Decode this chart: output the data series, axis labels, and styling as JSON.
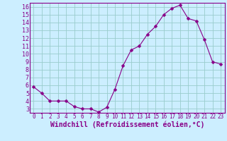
{
  "x": [
    0,
    1,
    2,
    3,
    4,
    5,
    6,
    7,
    8,
    9,
    10,
    11,
    12,
    13,
    14,
    15,
    16,
    17,
    18,
    19,
    20,
    21,
    22,
    23
  ],
  "y": [
    5.8,
    5.0,
    4.0,
    4.0,
    4.0,
    3.3,
    3.0,
    3.0,
    2.6,
    3.2,
    5.5,
    8.5,
    10.5,
    11.0,
    12.5,
    13.5,
    15.0,
    15.8,
    16.2,
    14.5,
    14.2,
    11.8,
    9.0,
    8.7
  ],
  "line_color": "#880088",
  "marker": "D",
  "marker_size": 2.5,
  "bg_color": "#cceeff",
  "grid_color": "#99cccc",
  "xlabel": "Windchill (Refroidissement éolien,°C)",
  "xlim": [
    -0.5,
    23.5
  ],
  "ylim": [
    2.5,
    16.5
  ],
  "xticks": [
    0,
    1,
    2,
    3,
    4,
    5,
    6,
    7,
    8,
    9,
    10,
    11,
    12,
    13,
    14,
    15,
    16,
    17,
    18,
    19,
    20,
    21,
    22,
    23
  ],
  "yticks": [
    3,
    4,
    5,
    6,
    7,
    8,
    9,
    10,
    11,
    12,
    13,
    14,
    15,
    16
  ],
  "tick_color": "#880088",
  "xlabel_color": "#880088",
  "xlabel_fontsize": 7,
  "ytick_fontsize": 6,
  "xtick_fontsize": 5.5
}
